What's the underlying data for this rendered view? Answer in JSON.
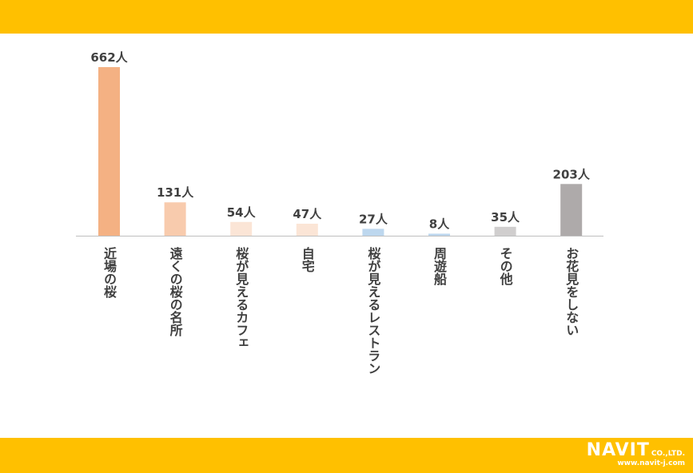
{
  "chart_data": {
    "type": "bar",
    "categories": [
      "近場の桜",
      "遠くの桜の名所",
      "桜が見えるカフェ",
      "自宅",
      "桜が見えるレストラン",
      "周遊船",
      "その他",
      "お花見をしない"
    ],
    "values": [
      662,
      131,
      54,
      47,
      27,
      8,
      35,
      203
    ],
    "value_labels": [
      "662人",
      "131人",
      "54人",
      "47人",
      "27人",
      "8人",
      "35人",
      "203人"
    ],
    "colors": [
      "#F4B183",
      "#F8CBAD",
      "#FBE5D6",
      "#FBE5D6",
      "#BDD7EE",
      "#BDD7EE",
      "#D0CECE",
      "#AEAAAA"
    ],
    "ylim": [
      0,
      662
    ],
    "grid": false,
    "legend": "none"
  },
  "brand": {
    "logo_text": "NAVIT",
    "logo_suffix": "CO.,LTD.",
    "url": "www.navit-j.com",
    "band_color": "#FFC000"
  }
}
